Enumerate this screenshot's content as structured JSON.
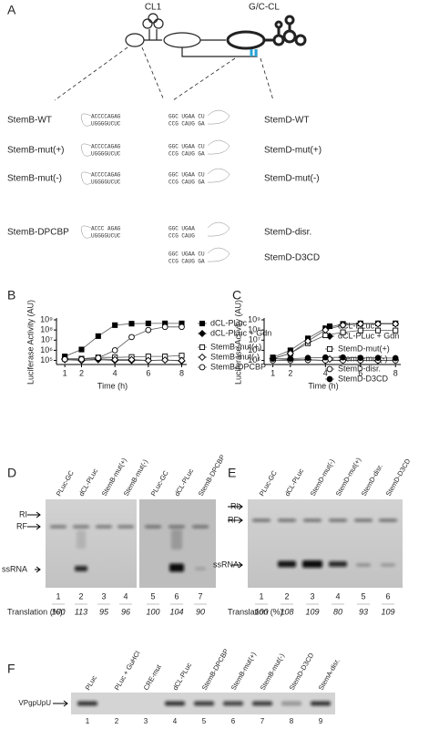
{
  "panel_labels": [
    "A",
    "B",
    "C",
    "D",
    "E",
    "F"
  ],
  "panel_a": {
    "elements": [
      "CL1",
      "G/C-CL"
    ],
    "stemb": [
      {
        "name": "StemB-WT",
        "top": "ACCCCAGAG",
        "bottom": "UGGGGUCUC"
      },
      {
        "name": "StemB-mut(+)",
        "top": "ACCCCAGAG",
        "bottom": "UGGGGUCUC"
      },
      {
        "name": "StemB-mut(-)",
        "top": "ACCCCAGAG",
        "bottom": "UGGGGUCUC"
      },
      {
        "name": "StemB-DPCBP",
        "top": "ACCC AGAG",
        "bottom": "UGGGGUCUC"
      }
    ],
    "stemd": [
      {
        "name": "StemD-WT",
        "top": "GGC UGAA CU",
        "bottom": "CCG CAUG GA"
      },
      {
        "name": "StemD-mut(+)",
        "top": "GGC UGAA CU",
        "bottom": "CCG CAUG GA"
      },
      {
        "name": "StemD-mut(-)",
        "top": "GGC UGAA CU",
        "bottom": "CCG CAUG GA"
      },
      {
        "name": "StemD-disr.",
        "top": "GGC UGAA",
        "bottom": "CCG CAUG"
      },
      {
        "name": "StemD-D3CD",
        "top": "GGC UGAA CU",
        "bottom": "CCG CAUG GA"
      }
    ]
  },
  "chart_data": [
    {
      "type": "line",
      "x_label": "Time (h)",
      "y_label": "Luciferase Activity (AU)",
      "x": [
        1,
        2,
        3,
        4,
        5,
        6,
        7,
        8
      ],
      "xlim": [
        0.5,
        8.3
      ],
      "xticks": [
        1,
        2,
        4,
        6,
        8
      ],
      "ylim": [
        40000,
        1000000000
      ],
      "log_y": true,
      "legend": "right",
      "yticks": [
        {
          "value": 100000,
          "label": "10⁵"
        },
        {
          "value": 1000000,
          "label": "10⁶"
        },
        {
          "value": 10000000,
          "label": "10⁷"
        },
        {
          "value": 100000000,
          "label": "10⁸"
        },
        {
          "value": 1000000000,
          "label": "10⁹"
        }
      ],
      "series": [
        {
          "name": "dCL-PLuc",
          "color": "#000000",
          "marker": "square",
          "filled": true,
          "values": [
            250000,
            1200000,
            25000000,
            300000000,
            420000000,
            450000000,
            450000000,
            450000000
          ]
        },
        {
          "name": "dCL-PLuc + Gdn",
          "color": "#000000",
          "marker": "diamond",
          "filled": true,
          "values": [
            150000,
            100000,
            120000,
            100000,
            100000,
            100000,
            110000,
            90000
          ]
        },
        {
          "name": "StemB-mut(+)",
          "color": "#000000",
          "marker": "square",
          "filled": false,
          "values": [
            150000,
            150000,
            200000,
            200000,
            220000,
            250000,
            250000,
            300000
          ]
        },
        {
          "name": "StemB-mut(-)",
          "color": "#000000",
          "marker": "diamond",
          "filled": false,
          "values": [
            120000,
            100000,
            150000,
            120000,
            120000,
            100000,
            110000,
            100000
          ]
        },
        {
          "name": "StemB-DPCBP",
          "color": "#000000",
          "marker": "circle",
          "filled": false,
          "values": [
            130000,
            130000,
            180000,
            1000000,
            20000000,
            100000000,
            200000000,
            200000000
          ]
        }
      ]
    },
    {
      "type": "line",
      "x_label": "Time (h)",
      "y_label": "Luciferase Activity (AU)",
      "x": [
        1,
        2,
        3,
        4,
        5,
        6,
        7,
        8
      ],
      "xlim": [
        0.5,
        8.3
      ],
      "xticks": [
        1,
        2,
        4,
        6,
        8
      ],
      "ylim": [
        40000,
        1000000000
      ],
      "log_y": true,
      "legend": "lower right",
      "yticks": [
        {
          "value": 100000,
          "label": "10⁵"
        },
        {
          "value": 1000000,
          "label": "10⁶"
        },
        {
          "value": 10000000,
          "label": "10⁷"
        },
        {
          "value": 100000000,
          "label": "10⁸"
        },
        {
          "value": 1000000000,
          "label": "10⁹"
        }
      ],
      "series": [
        {
          "name": "dCL-PLuc",
          "color": "#000000",
          "marker": "square",
          "filled": true,
          "values": [
            200000,
            1000000,
            15000000,
            150000000,
            400000000,
            450000000,
            450000000,
            450000000
          ]
        },
        {
          "name": "dCL-PLuc + Gdn",
          "color": "#000000",
          "marker": "diamond",
          "filled": true,
          "values": [
            150000,
            120000,
            120000,
            100000,
            110000,
            100000,
            100000,
            110000
          ]
        },
        {
          "name": "StemD-mut(+)",
          "color": "#000000",
          "marker": "square",
          "filled": false,
          "values": [
            150000,
            500000,
            5000000,
            30000000,
            60000000,
            90000000,
            90000000,
            90000000
          ]
        },
        {
          "name": "StemD-mut(-)",
          "color": "#000000",
          "marker": "diamond",
          "filled": false,
          "values": [
            150000,
            500000,
            8000000,
            100000000,
            300000000,
            400000000,
            400000000,
            400000000
          ]
        },
        {
          "name": "StemD-disr.",
          "color": "#000000",
          "marker": "circle",
          "filled": false,
          "values": [
            100000,
            100000,
            110000,
            100000,
            100000,
            100000,
            100000,
            100000
          ]
        },
        {
          "name": "StemD-D3CD",
          "color": "#000000",
          "marker": "circle",
          "filled": true,
          "values": [
            150000,
            150000,
            180000,
            200000,
            200000,
            180000,
            180000,
            170000
          ]
        }
      ]
    }
  ],
  "gel_d": {
    "lanes": [
      "PLuc-GC",
      "dCL-PLuc",
      "StemB-mut(+)",
      "StemB-mut(-)",
      "PLuc-GC",
      "dCL-PLuc",
      "StemB-DPCBP"
    ],
    "numbers": [
      1,
      2,
      3,
      4,
      5,
      6,
      7
    ],
    "markers": [
      "RI",
      "RF",
      "ssRNA"
    ],
    "translation_label": "Translation (%):",
    "translation": [
      100,
      113,
      95,
      96,
      100,
      104,
      90
    ]
  },
  "gel_e": {
    "lanes": [
      "PLuc-GC",
      "dCL-PLuc",
      "StemD-mut(-)",
      "StemD-mut(+)",
      "StemD-disr.",
      "StemD-D3CD"
    ],
    "numbers": [
      1,
      2,
      3,
      4,
      5,
      6
    ],
    "markers": [
      "RI",
      "RF",
      "ssRNA"
    ],
    "translation_label": "Translation (%):",
    "translation": [
      100,
      108,
      109,
      80,
      93,
      109
    ]
  },
  "gel_f": {
    "lanes": [
      "PLuc",
      "PLuc + GuHCl",
      "CRE-mut",
      "dCL-PLuc",
      "StemB-DPCBP",
      "StemB-mut(+)",
      "StemB-mut(-)",
      "StemD-D3CD",
      "StemA-disr."
    ],
    "numbers": [
      1,
      2,
      3,
      4,
      5,
      6,
      7,
      8,
      9
    ],
    "marker": "VPgpUpU"
  }
}
